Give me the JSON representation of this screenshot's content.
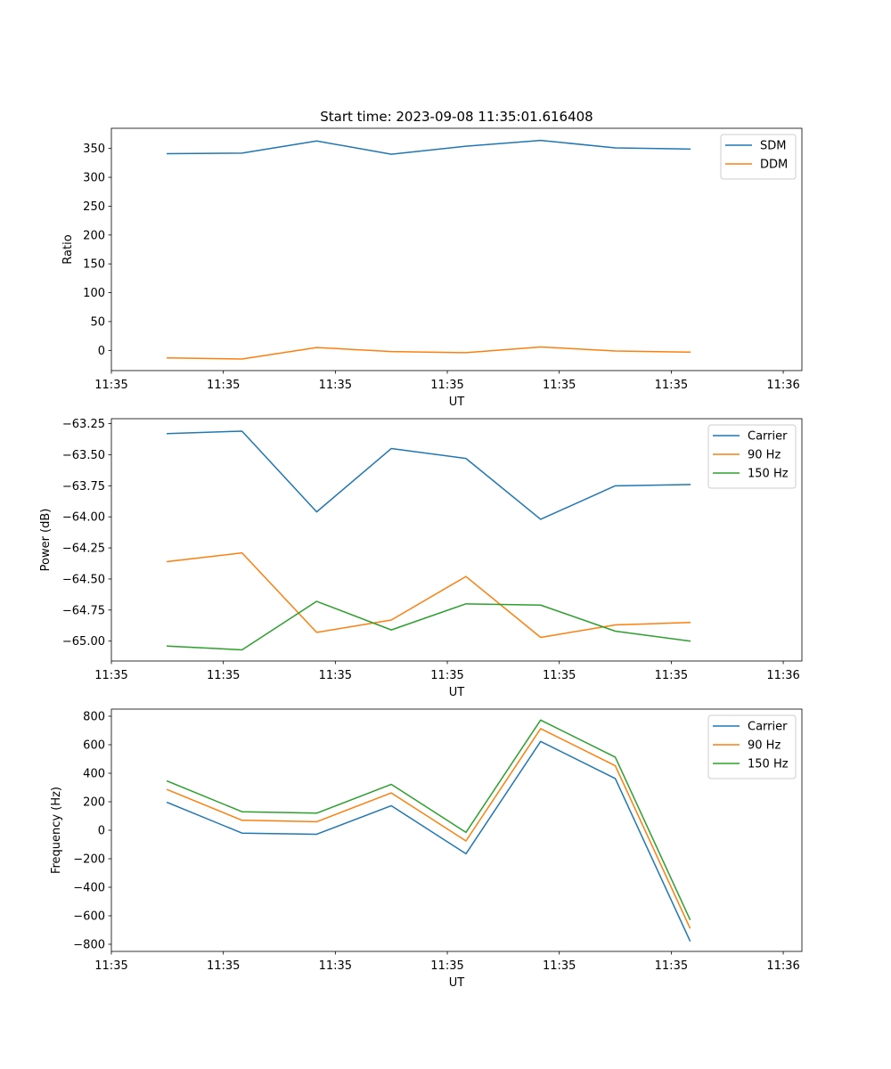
{
  "title": "Start time: 2023-09-08 11:35:01.616408",
  "colors": {
    "blue": "#1f77b4",
    "orange": "#ff7f0e",
    "green": "#2ca02c"
  },
  "chart_data": [
    {
      "type": "line",
      "xlabel": "UT",
      "ylabel": "Ratio",
      "xlim": [
        0,
        9.25
      ],
      "ylim": [
        -35,
        385
      ],
      "x": [
        0.75,
        1.75,
        2.75,
        3.75,
        4.75,
        5.75,
        6.75,
        7.75
      ],
      "x_ticks": [
        0,
        1.5,
        3,
        4.5,
        6,
        7.5,
        9
      ],
      "x_tick_labels": [
        "11:35",
        "11:35",
        "11:35",
        "11:35",
        "11:35",
        "11:35",
        "11:36"
      ],
      "y_ticks": [
        0,
        50,
        100,
        150,
        200,
        250,
        300,
        350
      ],
      "y_tick_labels": [
        "0",
        "50",
        "100",
        "150",
        "200",
        "250",
        "300",
        "350"
      ],
      "legend_position": "top-right",
      "series": [
        {
          "name": "SDM",
          "color": "#1f77b4",
          "values": [
            341,
            342,
            363,
            340,
            354,
            364,
            351,
            349
          ]
        },
        {
          "name": "DDM",
          "color": "#ff7f0e",
          "values": [
            -13,
            -15,
            5,
            -2,
            -4,
            6,
            -1,
            -3
          ]
        }
      ]
    },
    {
      "type": "line",
      "xlabel": "UT",
      "ylabel": "Power (dB)",
      "xlim": [
        0,
        9.25
      ],
      "ylim": [
        -65.16,
        -63.21
      ],
      "x": [
        0.75,
        1.75,
        2.75,
        3.75,
        4.75,
        5.75,
        6.75,
        7.75
      ],
      "x_ticks": [
        0,
        1.5,
        3,
        4.5,
        6,
        7.5,
        9
      ],
      "x_tick_labels": [
        "11:35",
        "11:35",
        "11:35",
        "11:35",
        "11:35",
        "11:35",
        "11:36"
      ],
      "y_ticks": [
        -65.0,
        -64.75,
        -64.5,
        -64.25,
        -64.0,
        -63.75,
        -63.5,
        -63.25
      ],
      "y_tick_labels": [
        "−65.00",
        "−64.75",
        "−64.50",
        "−64.25",
        "−64.00",
        "−63.75",
        "−63.50",
        "−63.25"
      ],
      "legend_position": "top-right",
      "series": [
        {
          "name": "Carrier",
          "color": "#1f77b4",
          "values": [
            -63.33,
            -63.31,
            -63.96,
            -63.45,
            -63.53,
            -64.02,
            -63.75,
            -63.74
          ]
        },
        {
          "name": "90 Hz",
          "color": "#ff7f0e",
          "values": [
            -64.36,
            -64.29,
            -64.93,
            -64.83,
            -64.48,
            -64.97,
            -64.87,
            -64.85
          ]
        },
        {
          "name": "150 Hz",
          "color": "#2ca02c",
          "values": [
            -65.04,
            -65.07,
            -64.68,
            -64.91,
            -64.7,
            -64.71,
            -64.92,
            -65.0
          ]
        }
      ]
    },
    {
      "type": "line",
      "xlabel": "UT",
      "ylabel": "Frequency (Hz)",
      "xlim": [
        0,
        9.25
      ],
      "ylim": [
        -850,
        850
      ],
      "x": [
        0.75,
        1.75,
        2.75,
        3.75,
        4.75,
        5.75,
        6.75,
        7.75
      ],
      "x_ticks": [
        0,
        1.5,
        3,
        4.5,
        6,
        7.5,
        9
      ],
      "x_tick_labels": [
        "11:35",
        "11:35",
        "11:35",
        "11:35",
        "11:35",
        "11:35",
        "11:36"
      ],
      "y_ticks": [
        -800,
        -600,
        -400,
        -200,
        0,
        200,
        400,
        600,
        800
      ],
      "y_tick_labels": [
        "−800",
        "−600",
        "−400",
        "−200",
        "0",
        "200",
        "400",
        "600",
        "800"
      ],
      "legend_position": "top-right",
      "series": [
        {
          "name": "Carrier",
          "color": "#1f77b4",
          "values": [
            195,
            -20,
            -28,
            172,
            -165,
            623,
            363,
            -775
          ]
        },
        {
          "name": "90 Hz",
          "color": "#ff7f0e",
          "values": [
            285,
            70,
            60,
            262,
            -75,
            713,
            453,
            -685
          ]
        },
        {
          "name": "150 Hz",
          "color": "#2ca02c",
          "values": [
            345,
            130,
            120,
            322,
            -15,
            773,
            513,
            -625
          ]
        }
      ]
    }
  ]
}
